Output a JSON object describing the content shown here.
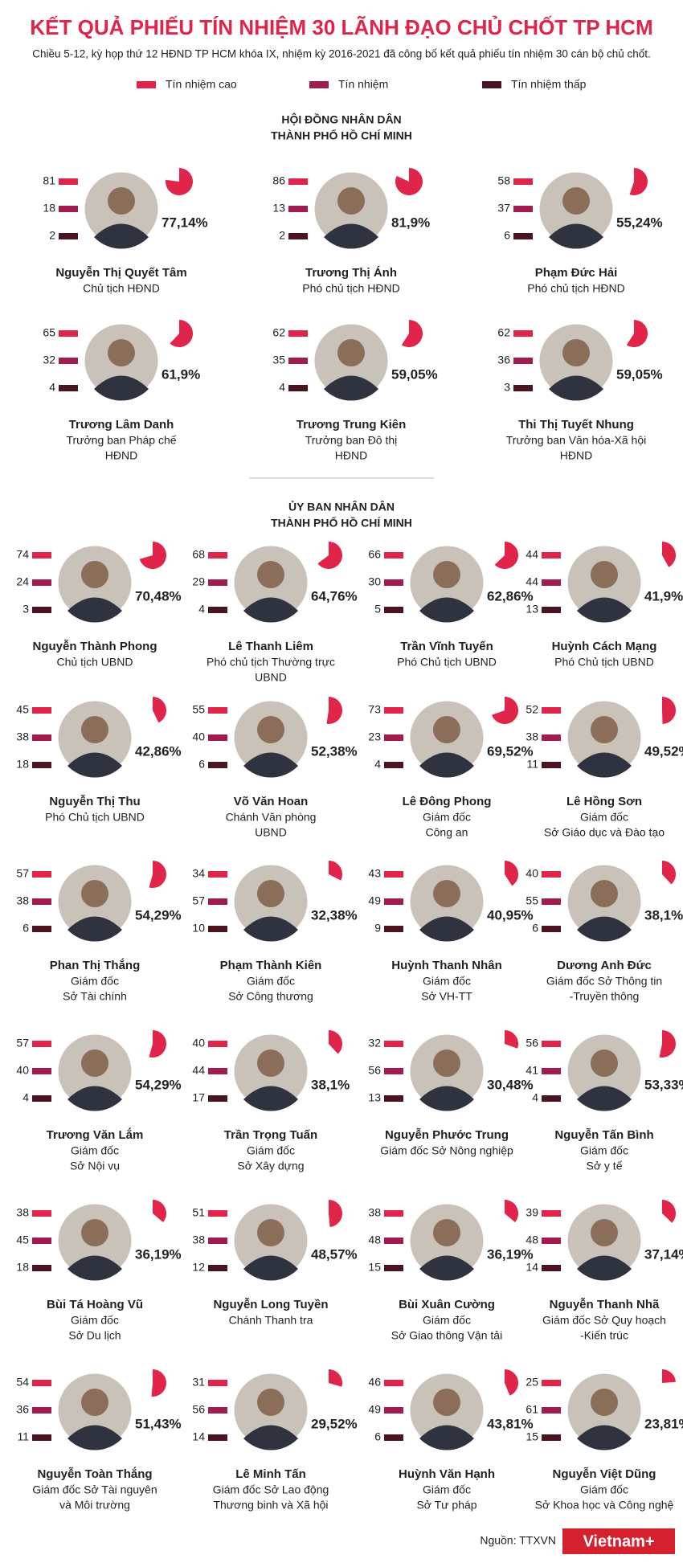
{
  "header": {
    "title": "KẾT QUẢ PHIẾU TÍN NHIỆM 30 LÃNH ĐẠO CHỦ CHỐT TP HCM",
    "subtitle": "Chiều 5-12, kỳ họp thứ 12 HĐND TP HCM khóa IX, nhiệm kỳ 2016-2021 đã công bố kết quả phiếu tín nhiệm 30 cán bộ chủ chốt."
  },
  "legend": [
    {
      "label": "Tín nhiệm cao",
      "color": "#e0244a"
    },
    {
      "label": "Tín nhiệm",
      "color": "#a01c50"
    },
    {
      "label": "Tín nhiệm thấp",
      "color": "#4a1420"
    }
  ],
  "sections": [
    {
      "title": [
        "HỘI ĐỒNG NHÂN DÂN",
        "THÀNH PHỐ HỒ CHÍ MINH"
      ],
      "people": [
        {
          "name": "Nguyễn Thị Quyết Tâm",
          "role": [
            "Chủ tịch HĐND"
          ],
          "votes": [
            81,
            18,
            2
          ],
          "percent": 77.14,
          "percent_label": "77,14%"
        },
        {
          "name": "Trương Thị Ánh",
          "role": [
            "Phó chủ tịch HĐND"
          ],
          "votes": [
            86,
            13,
            2
          ],
          "percent": 81.9,
          "percent_label": "81,9%"
        },
        {
          "name": "Phạm Đức Hải",
          "role": [
            "Phó chủ tịch HĐND"
          ],
          "votes": [
            58,
            37,
            6
          ],
          "percent": 55.24,
          "percent_label": "55,24%"
        },
        {
          "name": "Trương Lâm Danh",
          "role": [
            "Trưởng ban Pháp chế",
            "HĐND"
          ],
          "votes": [
            65,
            32,
            4
          ],
          "percent": 61.9,
          "percent_label": "61,9%"
        },
        {
          "name": "Trương Trung Kiên",
          "role": [
            "Trưởng ban Đô thị",
            "HĐND"
          ],
          "votes": [
            62,
            35,
            4
          ],
          "percent": 59.05,
          "percent_label": "59,05%"
        },
        {
          "name": "Thi Thị Tuyết Nhung",
          "role": [
            "Trưởng ban Văn hóa-Xã hội",
            "HĐND"
          ],
          "votes": [
            62,
            36,
            3
          ],
          "percent": 59.05,
          "percent_label": "59,05%"
        }
      ]
    },
    {
      "title": [
        "ỦY BAN NHÂN DÂN",
        "THÀNH PHỐ HỒ CHÍ MINH"
      ],
      "people": [
        {
          "name": "Nguyễn Thành Phong",
          "role": [
            "Chủ tịch UBND"
          ],
          "votes": [
            74,
            24,
            3
          ],
          "percent": 70.48,
          "percent_label": "70,48%"
        },
        {
          "name": "Lê Thanh Liêm",
          "role": [
            "Phó chủ tịch Thường trực",
            "UBND"
          ],
          "votes": [
            68,
            29,
            4
          ],
          "percent": 64.76,
          "percent_label": "64,76%"
        },
        {
          "name": "Trần Vĩnh Tuyến",
          "role": [
            "Phó Chủ tịch UBND"
          ],
          "votes": [
            66,
            30,
            5
          ],
          "percent": 62.86,
          "percent_label": "62,86%"
        },
        {
          "name": "Huỳnh Cách Mạng",
          "role": [
            "Phó Chủ tịch UBND"
          ],
          "votes": [
            44,
            44,
            13
          ],
          "percent": 41.9,
          "percent_label": "41,9%"
        },
        {
          "name": "Nguyễn Thị Thu",
          "role": [
            "Phó Chủ tịch UBND"
          ],
          "votes": [
            45,
            38,
            18
          ],
          "percent": 42.86,
          "percent_label": "42,86%"
        },
        {
          "name": "Võ Văn Hoan",
          "role": [
            "Chánh Văn phòng",
            "UBND"
          ],
          "votes": [
            55,
            40,
            6
          ],
          "percent": 52.38,
          "percent_label": "52,38%"
        },
        {
          "name": "Lê Đông Phong",
          "role": [
            "Giám đốc",
            "Công an"
          ],
          "votes": [
            73,
            23,
            4
          ],
          "percent": 69.52,
          "percent_label": "69,52%"
        },
        {
          "name": "Lê Hồng Sơn",
          "role": [
            "Giám đốc",
            "Sở Giáo dục và Đào tạo"
          ],
          "votes": [
            52,
            38,
            11
          ],
          "percent": 49.52,
          "percent_label": "49,52%"
        },
        {
          "name": "Phan Thị Thắng",
          "role": [
            "Giám đốc",
            "Sở Tài chính"
          ],
          "votes": [
            57,
            38,
            6
          ],
          "percent": 54.29,
          "percent_label": "54,29%"
        },
        {
          "name": "Phạm Thành Kiên",
          "role": [
            "Giám đốc",
            "Sở Công thương"
          ],
          "votes": [
            34,
            57,
            10
          ],
          "percent": 32.38,
          "percent_label": "32,38%"
        },
        {
          "name": "Huỳnh Thanh Nhân",
          "role": [
            "Giám đốc",
            "Sở VH-TT"
          ],
          "votes": [
            43,
            49,
            9
          ],
          "percent": 40.95,
          "percent_label": "40,95%"
        },
        {
          "name": "Dương Anh Đức",
          "role": [
            "Giám đốc Sở Thông tin",
            "-Truyền thông"
          ],
          "votes": [
            40,
            55,
            6
          ],
          "percent": 38.1,
          "percent_label": "38,1%"
        },
        {
          "name": "Trương Văn Lắm",
          "role": [
            "Giám đốc",
            "Sở Nội vụ"
          ],
          "votes": [
            57,
            40,
            4
          ],
          "percent": 54.29,
          "percent_label": "54,29%"
        },
        {
          "name": "Trần Trọng Tuấn",
          "role": [
            "Giám đốc",
            "Sở Xây dựng"
          ],
          "votes": [
            40,
            44,
            17
          ],
          "percent": 38.1,
          "percent_label": "38,1%"
        },
        {
          "name": "Nguyễn Phước Trung",
          "role": [
            "Giám đốc Sở Nông nghiệp"
          ],
          "votes": [
            32,
            56,
            13
          ],
          "percent": 30.48,
          "percent_label": "30,48%"
        },
        {
          "name": "Nguyễn Tấn Bình",
          "role": [
            "Giám đốc",
            "Sở y tế"
          ],
          "votes": [
            56,
            41,
            4
          ],
          "percent": 53.33,
          "percent_label": "53,33%"
        },
        {
          "name": "Bùi Tá Hoàng Vũ",
          "role": [
            "Giám đốc",
            "Sở Du lịch"
          ],
          "votes": [
            38,
            45,
            18
          ],
          "percent": 36.19,
          "percent_label": "36,19%"
        },
        {
          "name": "Nguyễn Long Tuyền",
          "role": [
            "Chánh Thanh tra"
          ],
          "votes": [
            51,
            38,
            12
          ],
          "percent": 48.57,
          "percent_label": "48,57%"
        },
        {
          "name": "Bùi Xuân Cường",
          "role": [
            "Giám đốc",
            "Sở Giao thông Vận tải"
          ],
          "votes": [
            38,
            48,
            15
          ],
          "percent": 36.19,
          "percent_label": "36,19%"
        },
        {
          "name": "Nguyễn Thanh Nhã",
          "role": [
            "Giám đốc Sở Quy hoạch",
            "-Kiến trúc"
          ],
          "votes": [
            39,
            48,
            14
          ],
          "percent": 37.14,
          "percent_label": "37,14%"
        },
        {
          "name": "Nguyễn Toàn Thắng",
          "role": [
            "Giám đốc Sở Tài nguyên",
            "và Môi trường"
          ],
          "votes": [
            54,
            36,
            11
          ],
          "percent": 51.43,
          "percent_label": "51,43%"
        },
        {
          "name": "Lê Minh Tấn",
          "role": [
            "Giám đốc Sở Lao động",
            "Thương binh và Xã hội"
          ],
          "votes": [
            31,
            56,
            14
          ],
          "percent": 29.52,
          "percent_label": "29,52%"
        },
        {
          "name": "Huỳnh Văn Hạnh",
          "role": [
            "Giám đốc",
            "Sở Tư pháp"
          ],
          "votes": [
            46,
            49,
            6
          ],
          "percent": 43.81,
          "percent_label": "43,81%"
        },
        {
          "name": "Nguyễn Việt Dũng",
          "role": [
            "Giám đốc",
            "Sở Khoa học và Công nghệ"
          ],
          "votes": [
            25,
            61,
            15
          ],
          "percent": 23.81,
          "percent_label": "23,81%"
        }
      ]
    }
  ],
  "footer": {
    "source": "Nguồn: TTXVN",
    "logo": "Vietnam+"
  }
}
